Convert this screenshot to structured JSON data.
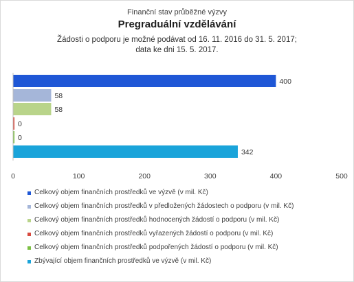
{
  "chart_data": {
    "type": "bar",
    "orientation": "horizontal",
    "supertitle": "Finanční stav průběžné výzvy",
    "title": "Pregraduální vzdělávání",
    "subtitle_line1": "Žádosti o podporu je možné  podávat od 16. 11. 2016 do  31. 5. 2017;",
    "subtitle_line2": "data ke dni 15. 5. 2017.",
    "xlim": [
      0,
      500
    ],
    "x_ticks": [
      "0",
      "100",
      "200",
      "300",
      "400",
      "500"
    ],
    "grid": false,
    "legend_position": "bottom",
    "series": [
      {
        "name": "Celkový objem finančních prostředků ve výzvě (v mil. Kč)",
        "value": 400,
        "label": "400",
        "color": "#1f57d6"
      },
      {
        "name": "Celkový objem finančních prostředků v předložených žádostech o podporu (v mil. Kč)",
        "value": 58,
        "label": "58",
        "color": "#a5b6d9"
      },
      {
        "name": "Celkový objem finančních prostředků hodnocených žádostí o podporu (v mil. Kč)",
        "value": 58,
        "label": "58",
        "color": "#b9d48a"
      },
      {
        "name": "Celkový objem finančních prostředků vyřazených žádostí o podporu (v mil. Kč)",
        "value": 0,
        "label": "0",
        "color": "#d84a3f"
      },
      {
        "name": "Celkový objem finančních prostředků podpořených žádostí o podporu (v mil. Kč)",
        "value": 0,
        "label": "0",
        "color": "#7cc043"
      },
      {
        "name": "Zbývající objem finančních prostředků ve výzvě (v mil. Kč)",
        "value": 342,
        "label": "342",
        "color": "#1aa4da"
      }
    ]
  }
}
